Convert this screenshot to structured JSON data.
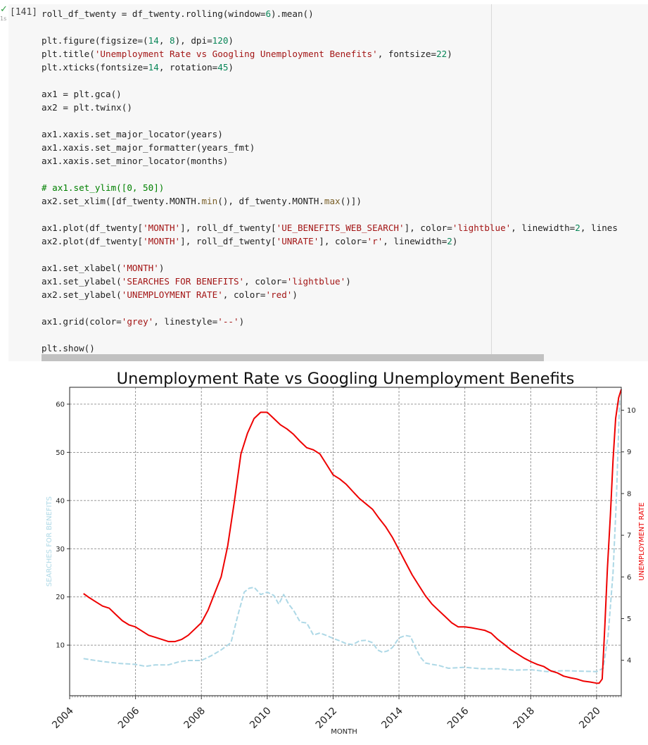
{
  "cell": {
    "status_icon": "check-icon",
    "exec_time": "1s",
    "exec_count": "[141]",
    "lines": [
      [
        [
          "roll_df_twenty = df_twenty.rolling(window=",
          "#1f1f1f"
        ],
        [
          "6",
          "#098658"
        ],
        [
          ").mean()",
          "#1f1f1f"
        ]
      ],
      [],
      [
        [
          "plt.figure(figsize=(",
          "#1f1f1f"
        ],
        [
          "14",
          "#098658"
        ],
        [
          ", ",
          "#1f1f1f"
        ],
        [
          "8",
          "#098658"
        ],
        [
          "), dpi=",
          "#1f1f1f"
        ],
        [
          "120",
          "#098658"
        ],
        [
          ")",
          "#1f1f1f"
        ]
      ],
      [
        [
          "plt.title(",
          "#1f1f1f"
        ],
        [
          "'Unemployment Rate vs Googling Unemployment Benefits'",
          "#a31515"
        ],
        [
          ", fontsize=",
          "#1f1f1f"
        ],
        [
          "22",
          "#098658"
        ],
        [
          ")",
          "#1f1f1f"
        ]
      ],
      [
        [
          "plt.xticks(fontsize=",
          "#1f1f1f"
        ],
        [
          "14",
          "#098658"
        ],
        [
          ", rotation=",
          "#1f1f1f"
        ],
        [
          "45",
          "#098658"
        ],
        [
          ")",
          "#1f1f1f"
        ]
      ],
      [],
      [
        [
          "ax1 = plt.gca()",
          "#1f1f1f"
        ]
      ],
      [
        [
          "ax2 = plt.twinx()",
          "#1f1f1f"
        ]
      ],
      [],
      [
        [
          "ax1.xaxis.set_major_locator(years)",
          "#1f1f1f"
        ]
      ],
      [
        [
          "ax1.xaxis.set_major_formatter(years_fmt)",
          "#1f1f1f"
        ]
      ],
      [
        [
          "ax1.xaxis.set_minor_locator(months)",
          "#1f1f1f"
        ]
      ],
      [],
      [
        [
          "# ax1.set_ylim([0, 50])",
          "#008000"
        ]
      ],
      [
        [
          "ax2.set_xlim([df_twenty.MONTH.",
          "#1f1f1f"
        ],
        [
          "min",
          "#795e26"
        ],
        [
          "(), df_twenty.MONTH.",
          "#1f1f1f"
        ],
        [
          "max",
          "#795e26"
        ],
        [
          "()])",
          "#1f1f1f"
        ]
      ],
      [],
      [
        [
          "ax1.plot(df_twenty[",
          "#1f1f1f"
        ],
        [
          "'MONTH'",
          "#a31515"
        ],
        [
          "], roll_df_twenty[",
          "#1f1f1f"
        ],
        [
          "'UE_BENEFITS_WEB_SEARCH'",
          "#a31515"
        ],
        [
          "], color=",
          "#1f1f1f"
        ],
        [
          "'lightblue'",
          "#a31515"
        ],
        [
          ", linewidth=",
          "#1f1f1f"
        ],
        [
          "2",
          "#098658"
        ],
        [
          ", lines",
          "#1f1f1f"
        ]
      ],
      [
        [
          "ax2.plot(df_twenty[",
          "#1f1f1f"
        ],
        [
          "'MONTH'",
          "#a31515"
        ],
        [
          "], roll_df_twenty[",
          "#1f1f1f"
        ],
        [
          "'UNRATE'",
          "#a31515"
        ],
        [
          "], color=",
          "#1f1f1f"
        ],
        [
          "'r'",
          "#a31515"
        ],
        [
          ", linewidth=",
          "#1f1f1f"
        ],
        [
          "2",
          "#098658"
        ],
        [
          ")",
          "#1f1f1f"
        ]
      ],
      [],
      [
        [
          "ax1.set_xlabel(",
          "#1f1f1f"
        ],
        [
          "'MONTH'",
          "#a31515"
        ],
        [
          ")",
          "#1f1f1f"
        ]
      ],
      [
        [
          "ax1.set_ylabel(",
          "#1f1f1f"
        ],
        [
          "'SEARCHES FOR BENEFITS'",
          "#a31515"
        ],
        [
          ", color=",
          "#1f1f1f"
        ],
        [
          "'lightblue'",
          "#a31515"
        ],
        [
          ")",
          "#1f1f1f"
        ]
      ],
      [
        [
          "ax2.set_ylabel(",
          "#1f1f1f"
        ],
        [
          "'UNEMPLOYMENT RATE'",
          "#a31515"
        ],
        [
          ", color=",
          "#1f1f1f"
        ],
        [
          "'red'",
          "#a31515"
        ],
        [
          ")",
          "#1f1f1f"
        ]
      ],
      [],
      [
        [
          "ax1.grid(color=",
          "#1f1f1f"
        ],
        [
          "'grey'",
          "#a31515"
        ],
        [
          ", linestyle=",
          "#1f1f1f"
        ],
        [
          "'--'",
          "#a31515"
        ],
        [
          ")",
          "#1f1f1f"
        ]
      ],
      [],
      [
        [
          "plt.show()",
          "#1f1f1f"
        ]
      ]
    ]
  },
  "chart_data": {
    "type": "line",
    "title": "Unemployment Rate vs Googling Unemployment Benefits",
    "xlabel": "MONTH",
    "ylabel_left": "SEARCHES FOR BENEFITS",
    "ylabel_right": "UNEMPLOYMENT RATE",
    "xlim": [
      2004.0,
      2020.75
    ],
    "ylim_left": [
      -0.5,
      63.5
    ],
    "ylim_right": [
      3.15,
      10.55
    ],
    "xticks": [
      "2004",
      "2006",
      "2008",
      "2010",
      "2012",
      "2014",
      "2016",
      "2018",
      "2020"
    ],
    "yticks_left": [
      "10",
      "20",
      "30",
      "40",
      "50",
      "60"
    ],
    "yticks_right": [
      "4",
      "5",
      "6",
      "7",
      "8",
      "9",
      "10"
    ],
    "grid": true,
    "series": [
      {
        "axis": "left",
        "color": "#add8e6",
        "style": "dashed",
        "x": [
          2004.42,
          2004.7,
          2005.0,
          2005.5,
          2006.0,
          2006.3,
          2006.6,
          2007.0,
          2007.3,
          2007.6,
          2008.0,
          2008.3,
          2008.6,
          2008.9,
          2009.1,
          2009.3,
          2009.45,
          2009.6,
          2009.8,
          2010.0,
          2010.2,
          2010.35,
          2010.5,
          2010.65,
          2010.8,
          2011.0,
          2011.2,
          2011.4,
          2011.6,
          2011.8,
          2012.0,
          2012.2,
          2012.4,
          2012.6,
          2012.8,
          2013.0,
          2013.2,
          2013.35,
          2013.5,
          2013.65,
          2013.8,
          2014.0,
          2014.2,
          2014.35,
          2014.5,
          2014.65,
          2014.8,
          2015.0,
          2015.2,
          2015.5,
          2016.0,
          2016.5,
          2017.0,
          2017.5,
          2018.0,
          2018.5,
          2019.0,
          2019.5,
          2020.0,
          2020.2,
          2020.35,
          2020.5,
          2020.6,
          2020.7
        ],
        "y": [
          7.2,
          6.9,
          6.6,
          6.2,
          6.0,
          5.6,
          5.9,
          5.9,
          6.5,
          6.8,
          6.8,
          7.8,
          9.0,
          10.5,
          16.0,
          21.0,
          21.8,
          22.0,
          20.5,
          21.0,
          20.3,
          18.5,
          20.5,
          18.5,
          17.2,
          14.8,
          14.6,
          12.1,
          12.5,
          12.0,
          11.4,
          10.9,
          10.3,
          10.1,
          10.9,
          11.0,
          10.5,
          9.0,
          8.5,
          8.8,
          9.5,
          11.5,
          12.0,
          11.8,
          9.5,
          7.5,
          6.3,
          6.0,
          5.8,
          5.2,
          5.4,
          5.1,
          5.1,
          4.8,
          4.9,
          4.5,
          4.7,
          4.6,
          4.5,
          5.2,
          12.0,
          25.0,
          40.0,
          61.0
        ]
      },
      {
        "axis": "right",
        "color": "#ee0000",
        "style": "solid",
        "x": [
          2004.42,
          2004.6,
          2004.8,
          2005.0,
          2005.2,
          2005.4,
          2005.6,
          2005.8,
          2006.0,
          2006.2,
          2006.4,
          2006.6,
          2006.8,
          2007.0,
          2007.2,
          2007.4,
          2007.6,
          2007.8,
          2008.0,
          2008.2,
          2008.4,
          2008.6,
          2008.8,
          2009.0,
          2009.2,
          2009.4,
          2009.6,
          2009.8,
          2010.0,
          2010.2,
          2010.4,
          2010.6,
          2010.8,
          2011.0,
          2011.2,
          2011.4,
          2011.6,
          2011.8,
          2012.0,
          2012.2,
          2012.4,
          2012.6,
          2012.8,
          2013.0,
          2013.2,
          2013.4,
          2013.6,
          2013.8,
          2014.0,
          2014.2,
          2014.4,
          2014.6,
          2014.8,
          2015.0,
          2015.2,
          2015.4,
          2015.6,
          2015.8,
          2016.0,
          2016.2,
          2016.4,
          2016.6,
          2016.8,
          2017.0,
          2017.2,
          2017.4,
          2017.6,
          2017.8,
          2018.0,
          2018.2,
          2018.4,
          2018.6,
          2018.8,
          2019.0,
          2019.2,
          2019.4,
          2019.6,
          2019.8,
          2020.0,
          2020.08,
          2020.17,
          2020.25,
          2020.33,
          2020.42,
          2020.5,
          2020.58,
          2020.67,
          2020.75
        ],
        "y": [
          5.6,
          5.5,
          5.4,
          5.3,
          5.25,
          5.1,
          4.95,
          4.85,
          4.8,
          4.7,
          4.6,
          4.55,
          4.5,
          4.45,
          4.45,
          4.5,
          4.6,
          4.75,
          4.9,
          5.2,
          5.6,
          6.0,
          6.75,
          7.8,
          8.95,
          9.45,
          9.8,
          9.95,
          9.95,
          9.8,
          9.65,
          9.55,
          9.42,
          9.25,
          9.1,
          9.05,
          8.95,
          8.7,
          8.45,
          8.35,
          8.22,
          8.05,
          7.88,
          7.75,
          7.62,
          7.4,
          7.2,
          6.95,
          6.65,
          6.35,
          6.05,
          5.8,
          5.55,
          5.35,
          5.2,
          5.05,
          4.9,
          4.8,
          4.8,
          4.78,
          4.75,
          4.72,
          4.65,
          4.5,
          4.38,
          4.25,
          4.15,
          4.05,
          3.97,
          3.9,
          3.85,
          3.75,
          3.7,
          3.62,
          3.58,
          3.55,
          3.5,
          3.48,
          3.45,
          3.45,
          3.55,
          4.8,
          6.2,
          7.5,
          8.8,
          9.8,
          10.3,
          10.5
        ]
      }
    ]
  }
}
